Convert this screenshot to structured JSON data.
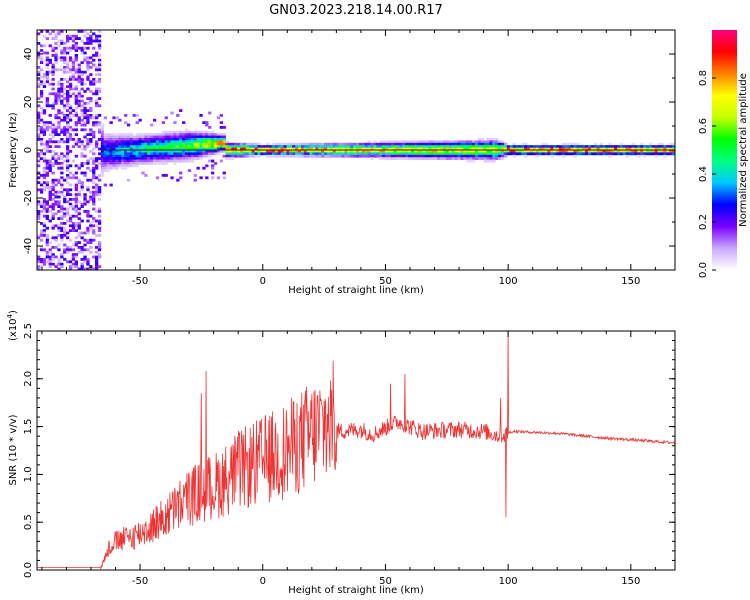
{
  "title": "GN03.2023.218.14.00.R17",
  "chart_data": [
    {
      "type": "heatmap",
      "xlabel": "Height of straight line (km)",
      "ylabel": "Frequency (Hz)",
      "xlim": [
        -92,
        168
      ],
      "ylim": [
        -50,
        50
      ],
      "x_ticks": [
        -50,
        0,
        50,
        100,
        150
      ],
      "y_ticks": [
        -40,
        -20,
        0,
        20,
        40
      ],
      "colorbar": {
        "label": "Normalized spectral amplitude",
        "range": [
          0,
          1
        ],
        "ticks": [
          "0.0",
          "0.2",
          "0.4",
          "0.6",
          "0.8"
        ],
        "colormap": [
          "#ffffff",
          "#c9a8ff",
          "#7a00ff",
          "#0000ff",
          "#00c8ff",
          "#00ff80",
          "#00ff00",
          "#c8ff00",
          "#ffff00",
          "#ff8000",
          "#ff0000",
          "#ff0080"
        ]
      },
      "description_of_ridge": [
        {
          "x": -92,
          "half_width_hz": 45,
          "amplitude": 0.12
        },
        {
          "x": -70,
          "half_width_hz": 40,
          "amplitude": 0.15
        },
        {
          "x": -65,
          "half_width_hz": 8,
          "amplitude": 0.3
        },
        {
          "x": -50,
          "half_width_hz": 6,
          "amplitude": 0.45
        },
        {
          "x": -30,
          "half_width_hz": 6,
          "amplitude": 0.55
        },
        {
          "x": -15,
          "half_width_hz": 3,
          "amplitude": 0.85
        },
        {
          "x": 0,
          "half_width_hz": 2,
          "amplitude": 0.9
        },
        {
          "x": 50,
          "half_width_hz": 3,
          "amplitude": 0.75
        },
        {
          "x": 95,
          "half_width_hz": 4,
          "amplitude": 0.7
        },
        {
          "x": 100,
          "half_width_hz": 2,
          "amplitude": 0.9
        },
        {
          "x": 168,
          "half_width_hz": 2,
          "amplitude": 0.9
        }
      ]
    },
    {
      "type": "line",
      "xlabel": "Height of straight line (km)",
      "ylabel": "SNR (10 * v/v)",
      "y_scale_label": "(x10",
      "y_scale_exponent": "4",
      "y_scale_close": ")",
      "xlim": [
        -92,
        168
      ],
      "ylim": [
        0,
        2.5
      ],
      "x_ticks": [
        -50,
        0,
        50,
        100,
        150
      ],
      "y_ticks": [
        "0.0",
        "0.5",
        "1.0",
        "1.5",
        "2.0",
        "2.5"
      ],
      "series": [
        {
          "color": "#ee3333",
          "envelope": [
            {
              "x": -92,
              "y": 0.02
            },
            {
              "x": -66,
              "y": 0.02
            },
            {
              "x": -62,
              "y": 0.25
            },
            {
              "x": -50,
              "y": 0.35
            },
            {
              "x": -40,
              "y": 0.5
            },
            {
              "x": -30,
              "y": 0.7
            },
            {
              "x": -20,
              "y": 0.8
            },
            {
              "x": -10,
              "y": 0.95
            },
            {
              "x": 0,
              "y": 1.05
            },
            {
              "x": 10,
              "y": 1.15
            },
            {
              "x": 20,
              "y": 1.3
            },
            {
              "x": 30,
              "y": 1.45
            },
            {
              "x": 40,
              "y": 1.47
            },
            {
              "x": 45,
              "y": 1.42
            },
            {
              "x": 55,
              "y": 1.55
            },
            {
              "x": 65,
              "y": 1.45
            },
            {
              "x": 80,
              "y": 1.47
            },
            {
              "x": 90,
              "y": 1.45
            },
            {
              "x": 97,
              "y": 1.4
            },
            {
              "x": 102,
              "y": 1.45
            },
            {
              "x": 120,
              "y": 1.43
            },
            {
              "x": 140,
              "y": 1.38
            },
            {
              "x": 168,
              "y": 1.33
            }
          ],
          "spikes": [
            {
              "x": -25,
              "y": 1.85
            },
            {
              "x": -23,
              "y": 2.08
            },
            {
              "x": 52,
              "y": 1.95
            },
            {
              "x": 58,
              "y": 2.05
            },
            {
              "x": 97,
              "y": 1.8
            },
            {
              "x": 100,
              "y": 2.5
            },
            {
              "x": 99,
              "y": 0.55
            }
          ]
        }
      ]
    }
  ]
}
